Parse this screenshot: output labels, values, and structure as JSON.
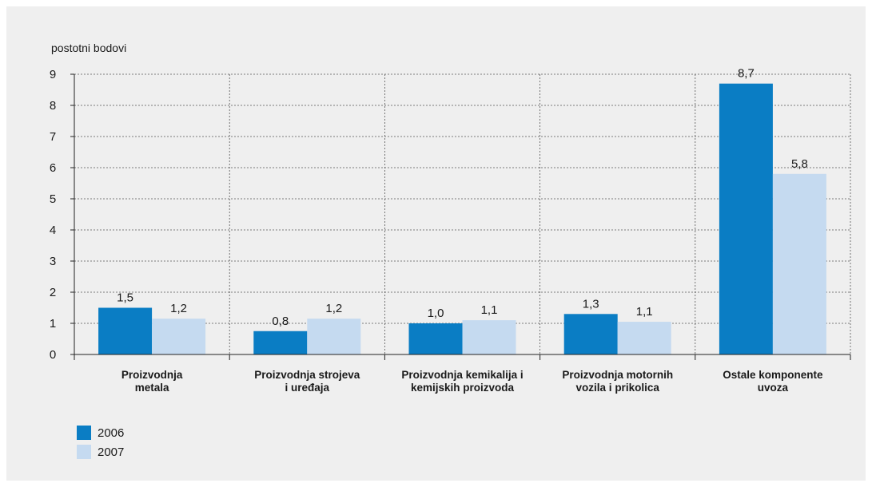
{
  "chart_data": {
    "type": "bar",
    "ylabel": "postotni bodovi",
    "ylim": [
      0,
      9
    ],
    "yticks": [
      0,
      1,
      2,
      3,
      4,
      5,
      6,
      7,
      8,
      9
    ],
    "grid": true,
    "legend_position": "bottom-left",
    "categories": [
      [
        "Proizvodnja",
        "metala"
      ],
      [
        "Proizvodnja strojeva",
        "i uređaja"
      ],
      [
        "Proizvodnja kemikalija i",
        "kemijskih proizvoda"
      ],
      [
        "Proizvodnja motornih",
        "vozila i prikolica"
      ],
      [
        "Ostale komponente",
        "uvoza"
      ]
    ],
    "series": [
      {
        "name": "2006",
        "color": "#0a7dc4",
        "values": [
          1.5,
          0.75,
          1.0,
          1.3,
          8.7
        ],
        "labels": [
          "1,5",
          "0,8",
          "1,0",
          "1,3",
          "8,7"
        ]
      },
      {
        "name": "2007",
        "color": "#c5daf0",
        "values": [
          1.15,
          1.15,
          1.1,
          1.05,
          5.8
        ],
        "labels": [
          "1,2",
          "1,2",
          "1,1",
          "1,1",
          "5,8"
        ]
      }
    ]
  }
}
